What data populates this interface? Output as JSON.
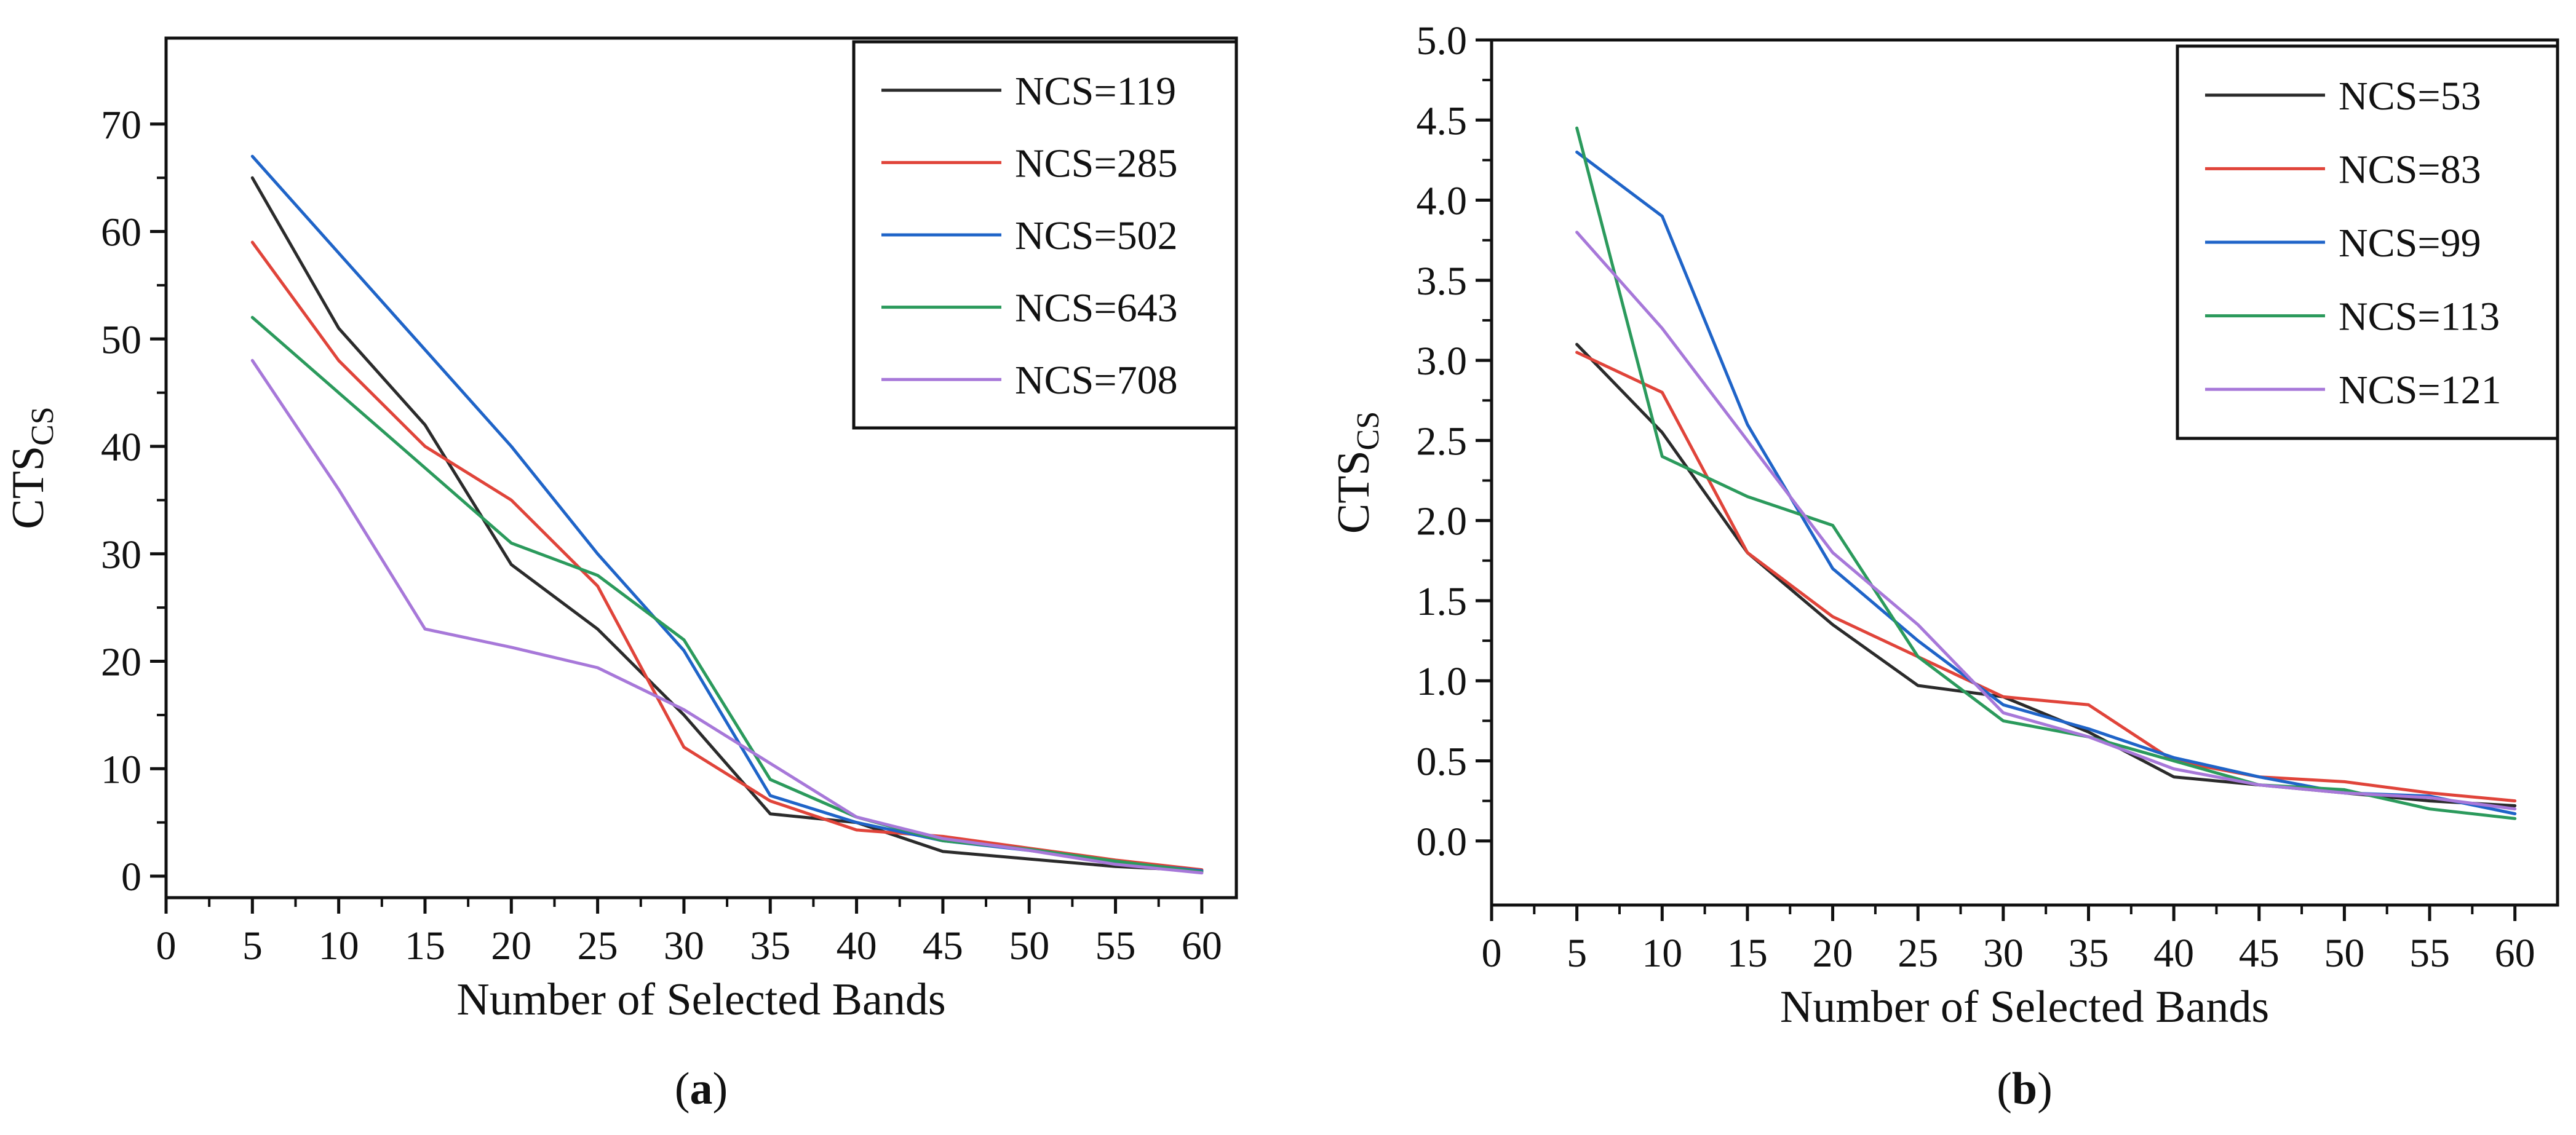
{
  "chart_data": [
    {
      "type": "line",
      "panel_label": "a",
      "xlabel": "Number of Selected Bands",
      "ylabel": {
        "main": "CTS",
        "sub": "CS"
      },
      "xlim": [
        0,
        62
      ],
      "ylim": [
        -2,
        78
      ],
      "xticks": [
        0,
        5,
        10,
        15,
        20,
        25,
        30,
        35,
        40,
        45,
        50,
        55,
        60
      ],
      "yticks": [
        0,
        10,
        20,
        30,
        40,
        50,
        60,
        70
      ],
      "legend_position": "top-right",
      "x": [
        5,
        10,
        15,
        20,
        25,
        30,
        35,
        40,
        45,
        50,
        55,
        60
      ],
      "series": [
        {
          "name": "NCS=119",
          "color": "#2b2b2b",
          "values": [
            65,
            51,
            42,
            29,
            23,
            15,
            5.8,
            5,
            2.3,
            1.6,
            0.9,
            0.5
          ]
        },
        {
          "name": "NCS=285",
          "color": "#e0443a",
          "values": [
            59,
            48,
            40,
            35,
            27,
            12,
            7,
            4.3,
            3.7,
            2.6,
            1.5,
            0.6
          ]
        },
        {
          "name": "NCS=502",
          "color": "#1f64c8",
          "values": [
            67,
            58,
            49,
            40,
            30,
            21,
            7.5,
            5,
            3.3,
            2.4,
            1.3,
            0.5
          ]
        },
        {
          "name": "NCS=643",
          "color": "#2b9a5c",
          "values": [
            52,
            45,
            38,
            31,
            28,
            22,
            9,
            5.5,
            3.3,
            2.5,
            1.4,
            0.4
          ]
        },
        {
          "name": "NCS=708",
          "color": "#a778d9",
          "values": [
            48,
            36,
            23,
            21.3,
            19.4,
            15.5,
            10.5,
            5.5,
            3.5,
            2.4,
            1.1,
            0.3
          ]
        }
      ]
    },
    {
      "type": "line",
      "panel_label": "b",
      "xlabel": "Number of Selected Bands",
      "ylabel": {
        "main": "CTS",
        "sub": "CS"
      },
      "xlim": [
        0,
        62.5
      ],
      "ylim": [
        -0.4,
        5.0
      ],
      "xticks": [
        0,
        5,
        10,
        15,
        20,
        25,
        30,
        35,
        40,
        45,
        50,
        55,
        60
      ],
      "yticks": [
        "0.0",
        "0.5",
        "1.0",
        "1.5",
        "2.0",
        "2.5",
        "3.0",
        "3.5",
        "4.0",
        "4.5",
        "5.0"
      ],
      "legend_position": "top-right",
      "x": [
        5,
        10,
        15,
        20,
        25,
        30,
        35,
        40,
        45,
        50,
        55,
        60
      ],
      "series": [
        {
          "name": "NCS=53",
          "color": "#2b2b2b",
          "values": [
            3.1,
            2.55,
            1.8,
            1.35,
            0.97,
            0.9,
            0.68,
            0.4,
            0.35,
            0.3,
            0.25,
            0.22
          ]
        },
        {
          "name": "NCS=83",
          "color": "#e0443a",
          "values": [
            3.05,
            2.8,
            1.8,
            1.4,
            1.15,
            0.9,
            0.85,
            0.5,
            0.4,
            0.37,
            0.3,
            0.25
          ]
        },
        {
          "name": "NCS=99",
          "color": "#1f64c8",
          "values": [
            4.3,
            3.9,
            2.6,
            1.7,
            1.25,
            0.85,
            0.7,
            0.52,
            0.4,
            0.3,
            0.28,
            0.17
          ]
        },
        {
          "name": "NCS=113",
          "color": "#2b9a5c",
          "values": [
            4.45,
            2.4,
            2.15,
            1.97,
            1.15,
            0.75,
            0.65,
            0.5,
            0.35,
            0.32,
            0.2,
            0.14
          ]
        },
        {
          "name": "NCS=121",
          "color": "#a778d9",
          "values": [
            3.8,
            3.2,
            2.5,
            1.8,
            1.35,
            0.8,
            0.65,
            0.45,
            0.35,
            0.3,
            0.27,
            0.2
          ]
        }
      ]
    }
  ]
}
